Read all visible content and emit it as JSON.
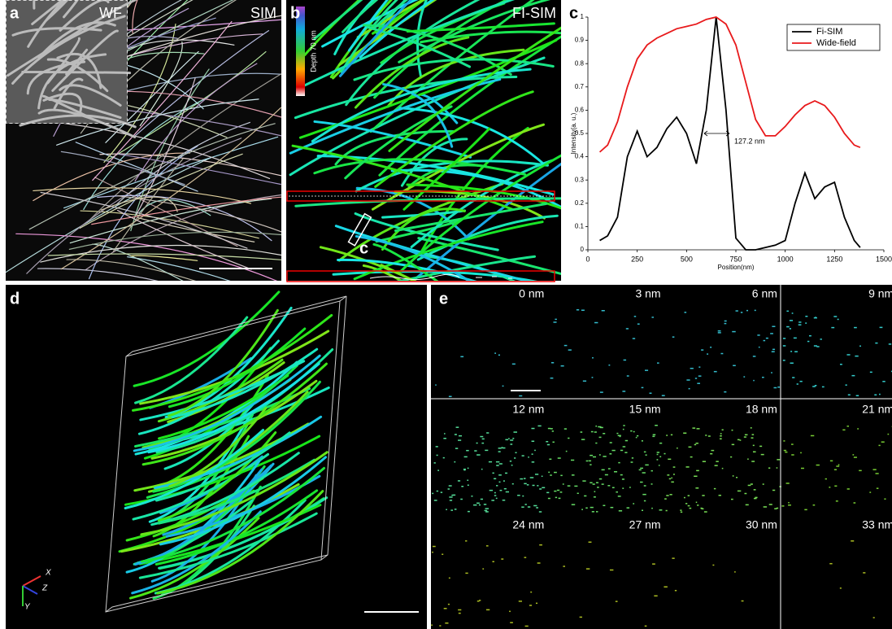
{
  "panels": {
    "a": {
      "letter": "a",
      "inset_label": "WF",
      "label": "SIM"
    },
    "b": {
      "letter": "b",
      "label": "FI-SIM",
      "colorbar_label": "Depth 70 nm",
      "region_label": "c"
    },
    "d": {
      "letter": "d",
      "axes": [
        "X",
        "Z",
        "Y"
      ]
    },
    "e": {
      "letter": "e",
      "depths": [
        "0 nm",
        "3 nm",
        "6 nm",
        "9 nm",
        "12 nm",
        "15 nm",
        "18 nm",
        "21 nm",
        "24 nm",
        "27 nm",
        "30 nm",
        "33 nm"
      ]
    }
  },
  "chart_data": {
    "type": "line",
    "panel_letter": "c",
    "xlabel": "Position(nm)",
    "ylabel": "Intensity(a. u.)",
    "annotation": "127.2 nm",
    "x": [
      60,
      100,
      150,
      200,
      250,
      300,
      350,
      400,
      450,
      500,
      550,
      600,
      650,
      700,
      750,
      800,
      850,
      900,
      950,
      1000,
      1050,
      1100,
      1150,
      1200,
      1250,
      1300,
      1350,
      1380
    ],
    "series": [
      {
        "name": "Fi-SIM",
        "color": "#000000",
        "values": [
          0.04,
          0.06,
          0.14,
          0.4,
          0.51,
          0.4,
          0.44,
          0.52,
          0.57,
          0.5,
          0.37,
          0.6,
          1.0,
          0.6,
          0.05,
          0,
          0,
          0.01,
          0.02,
          0.04,
          0.2,
          0.33,
          0.22,
          0.27,
          0.29,
          0.14,
          0.04,
          0.01
        ]
      },
      {
        "name": "Wide-field",
        "color": "#e8191b",
        "values": [
          0.42,
          0.45,
          0.55,
          0.7,
          0.82,
          0.88,
          0.91,
          0.93,
          0.95,
          0.96,
          0.97,
          0.99,
          1.0,
          0.97,
          0.88,
          0.72,
          0.56,
          0.49,
          0.49,
          0.53,
          0.58,
          0.62,
          0.64,
          0.62,
          0.57,
          0.5,
          0.45,
          0.44
        ]
      }
    ],
    "xlim": [
      0,
      1500
    ],
    "xticks": [
      0,
      250,
      500,
      750,
      1000,
      1250,
      1500
    ],
    "ylim": [
      0,
      1
    ],
    "yticks": [
      0,
      0.1,
      0.2,
      0.3,
      0.4,
      0.5,
      0.6,
      0.7,
      0.8,
      0.9,
      1
    ],
    "legend": "upper right"
  }
}
